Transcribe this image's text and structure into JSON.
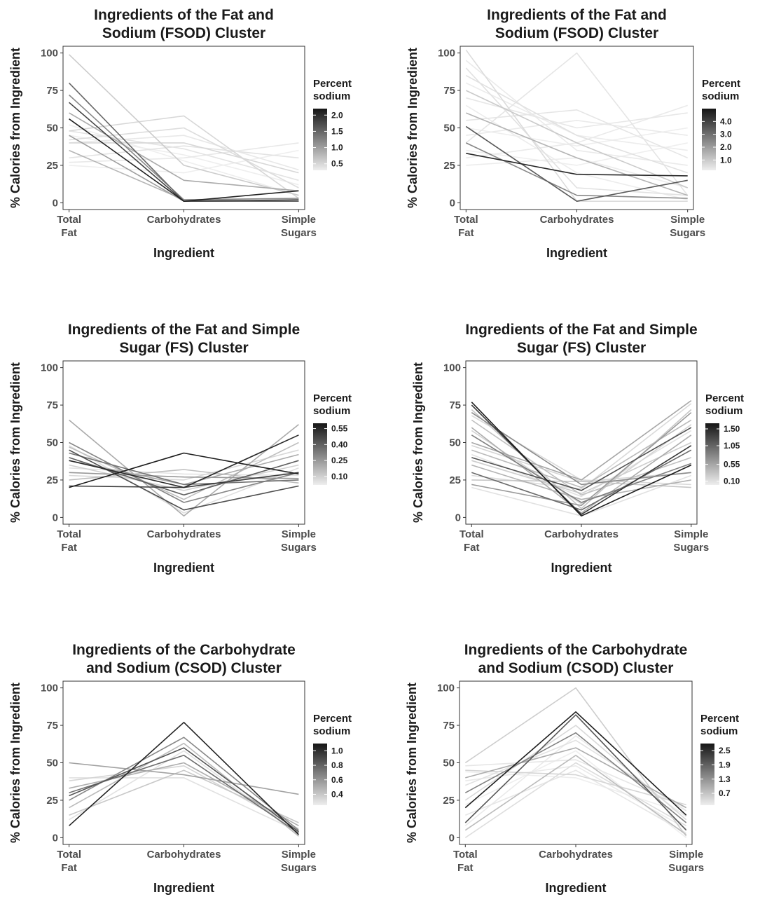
{
  "chart_data": [
    {
      "type": "line",
      "title": [
        "Ingredients of the Fat and",
        "Sodium (FSOD) Cluster"
      ],
      "xlabel": "Ingredient",
      "ylabel": "% Calories from Ingredient",
      "categories": [
        [
          "Total",
          "Fat"
        ],
        [
          "Carbohydrates"
        ],
        [
          "Simple",
          "Sugars"
        ]
      ],
      "ylim": [
        0,
        100
      ],
      "yticks": [
        0,
        25,
        50,
        75,
        100
      ],
      "legend": {
        "title": [
          "Percent",
          "sodium"
        ],
        "placement": "right",
        "range": [
          0.3,
          2.2
        ],
        "ticks": [
          2.0,
          1.5,
          1.0,
          0.5
        ],
        "tick_labels": [
          "2.0",
          "1.5",
          "1.0",
          "0.5"
        ]
      },
      "series": [
        {
          "sodium": 2.1,
          "values": [
            56,
            1,
            8
          ]
        },
        {
          "sodium": 1.8,
          "values": [
            67,
            1,
            2
          ]
        },
        {
          "sodium": 1.5,
          "values": [
            80,
            1,
            1
          ]
        },
        {
          "sodium": 1.2,
          "values": [
            72,
            2,
            3
          ]
        },
        {
          "sodium": 1.0,
          "values": [
            45,
            1,
            1
          ]
        },
        {
          "sodium": 0.9,
          "values": [
            60,
            15,
            8
          ]
        },
        {
          "sodium": 0.8,
          "values": [
            35,
            2,
            1
          ]
        },
        {
          "sodium": 0.6,
          "values": [
            99,
            25,
            5
          ]
        },
        {
          "sodium": 0.5,
          "values": [
            48,
            58,
            3
          ]
        },
        {
          "sodium": 0.5,
          "values": [
            40,
            40,
            20
          ]
        },
        {
          "sodium": 0.45,
          "values": [
            42,
            50,
            10
          ]
        },
        {
          "sodium": 0.4,
          "values": [
            30,
            38,
            30
          ]
        },
        {
          "sodium": 0.4,
          "values": [
            48,
            36,
            15
          ]
        },
        {
          "sodium": 0.35,
          "values": [
            27,
            30,
            40
          ]
        },
        {
          "sodium": 0.35,
          "values": [
            40,
            45,
            22
          ]
        },
        {
          "sodium": 0.3,
          "values": [
            52,
            28,
            5
          ]
        },
        {
          "sodium": 0.3,
          "values": [
            25,
            20,
            35
          ]
        },
        {
          "sodium": 0.3,
          "values": [
            45,
            32,
            12
          ]
        }
      ]
    },
    {
      "type": "line",
      "title": [
        "Ingredients of the Fat and",
        "Sodium (FSOD) Cluster"
      ],
      "xlabel": "Ingredient",
      "ylabel": "% Calories from Ingredient",
      "categories": [
        [
          "Total",
          "Fat"
        ],
        [
          "Carbohydrates"
        ],
        [
          "Simple",
          "Sugars"
        ]
      ],
      "ylim": [
        0,
        100
      ],
      "yticks": [
        0,
        25,
        50,
        75,
        100
      ],
      "legend": {
        "title": [
          "Percent",
          "sodium"
        ],
        "placement": "right",
        "range": [
          0.2,
          5.0
        ],
        "ticks": [
          4.0,
          3.0,
          2.0,
          1.0
        ],
        "tick_labels": [
          "4.0",
          "3.0",
          "2.0",
          "1.0"
        ]
      },
      "series": [
        {
          "sodium": 4.6,
          "values": [
            33,
            19,
            18
          ]
        },
        {
          "sodium": 3.5,
          "values": [
            51,
            1,
            15
          ]
        },
        {
          "sodium": 2.5,
          "values": [
            40,
            5,
            3
          ]
        },
        {
          "sodium": 1.5,
          "values": [
            60,
            30,
            5
          ]
        },
        {
          "sodium": 1.0,
          "values": [
            75,
            40,
            10
          ]
        },
        {
          "sodium": 0.6,
          "values": [
            102,
            1,
            1
          ]
        },
        {
          "sodium": 0.5,
          "values": [
            90,
            10,
            5
          ]
        },
        {
          "sodium": 0.5,
          "values": [
            85,
            45,
            20
          ]
        },
        {
          "sodium": 0.4,
          "values": [
            40,
            100,
            5
          ]
        },
        {
          "sodium": 0.4,
          "values": [
            55,
            62,
            30
          ]
        },
        {
          "sodium": 0.35,
          "values": [
            70,
            50,
            60
          ]
        },
        {
          "sodium": 0.3,
          "values": [
            30,
            40,
            65
          ]
        },
        {
          "sodium": 0.3,
          "values": [
            45,
            55,
            45
          ]
        },
        {
          "sodium": 0.3,
          "values": [
            95,
            35,
            25
          ]
        },
        {
          "sodium": 0.25,
          "values": [
            25,
            30,
            10
          ]
        },
        {
          "sodium": 0.25,
          "values": [
            65,
            20,
            2
          ]
        },
        {
          "sodium": 0.25,
          "values": [
            80,
            45,
            35
          ]
        },
        {
          "sodium": 0.2,
          "values": [
            50,
            38,
            50
          ]
        },
        {
          "sodium": 0.2,
          "values": [
            35,
            25,
            40
          ]
        }
      ]
    },
    {
      "type": "line",
      "title": [
        "Ingredients of the Fat and Simple",
        "Sugar (FS) Cluster"
      ],
      "xlabel": "Ingredient",
      "ylabel": "% Calories from Ingredient",
      "categories": [
        [
          "Total",
          "Fat"
        ],
        [
          "Carbohydrates"
        ],
        [
          "Simple",
          "Sugars"
        ]
      ],
      "ylim": [
        0,
        100
      ],
      "yticks": [
        0,
        25,
        50,
        75,
        100
      ],
      "legend": {
        "title": [
          "Percent",
          "sodium"
        ],
        "placement": "right",
        "range": [
          0.02,
          0.6
        ],
        "ticks": [
          0.55,
          0.4,
          0.25,
          0.1
        ],
        "tick_labels": [
          "0.55",
          "0.40",
          "0.25",
          "0.10"
        ]
      },
      "series": [
        {
          "sodium": 0.58,
          "values": [
            20,
            43,
            29
          ]
        },
        {
          "sodium": 0.55,
          "values": [
            38,
            20,
            55
          ]
        },
        {
          "sodium": 0.5,
          "values": [
            21,
            20,
            30
          ]
        },
        {
          "sodium": 0.45,
          "values": [
            45,
            5,
            21
          ]
        },
        {
          "sodium": 0.4,
          "values": [
            40,
            15,
            38
          ]
        },
        {
          "sodium": 0.35,
          "values": [
            43,
            22,
            25
          ]
        },
        {
          "sodium": 0.3,
          "values": [
            50,
            10,
            30
          ]
        },
        {
          "sodium": 0.25,
          "values": [
            30,
            27,
            26
          ]
        },
        {
          "sodium": 0.2,
          "values": [
            65,
            1,
            62
          ]
        },
        {
          "sodium": 0.2,
          "values": [
            38,
            22,
            42
          ]
        },
        {
          "sodium": 0.15,
          "values": [
            25,
            32,
            23
          ]
        },
        {
          "sodium": 0.15,
          "values": [
            47,
            12,
            50
          ]
        },
        {
          "sodium": 0.1,
          "values": [
            35,
            18,
            35
          ]
        },
        {
          "sodium": 0.08,
          "values": [
            28,
            25,
            45
          ]
        },
        {
          "sodium": 0.06,
          "values": [
            48,
            3,
            33
          ]
        },
        {
          "sodium": 0.05,
          "values": [
            33,
            29,
            28
          ]
        }
      ]
    },
    {
      "type": "line",
      "title": [
        "Ingredients of the Fat and Simple",
        "Sugar (FS) Cluster"
      ],
      "xlabel": "Ingredient",
      "ylabel": "% Calories from Ingredient",
      "categories": [
        [
          "Total",
          "Fat"
        ],
        [
          "Carbohydrates"
        ],
        [
          "Simple",
          "Sugars"
        ]
      ],
      "ylim": [
        0,
        100
      ],
      "yticks": [
        0,
        25,
        50,
        75,
        100
      ],
      "legend": {
        "title": [
          "Percent",
          "sodium"
        ],
        "placement": "right",
        "range": [
          0.0,
          1.65
        ],
        "ticks": [
          1.5,
          1.05,
          0.55,
          0.1
        ],
        "tick_labels": [
          "1.50",
          "1.05",
          "0.55",
          "0.10"
        ]
      },
      "series": [
        {
          "sodium": 1.6,
          "values": [
            77,
            1,
            35
          ]
        },
        {
          "sodium": 1.4,
          "values": [
            75,
            2,
            48
          ]
        },
        {
          "sodium": 1.2,
          "values": [
            40,
            18,
            60
          ]
        },
        {
          "sodium": 1.0,
          "values": [
            30,
            5,
            45
          ]
        },
        {
          "sodium": 0.85,
          "values": [
            55,
            10,
            36
          ]
        },
        {
          "sodium": 0.75,
          "values": [
            70,
            22,
            30
          ]
        },
        {
          "sodium": 0.65,
          "values": [
            22,
            8,
            70
          ]
        },
        {
          "sodium": 0.55,
          "values": [
            50,
            25,
            78
          ]
        },
        {
          "sodium": 0.5,
          "values": [
            60,
            3,
            55
          ]
        },
        {
          "sodium": 0.45,
          "values": [
            35,
            12,
            25
          ]
        },
        {
          "sodium": 0.4,
          "values": [
            45,
            20,
            65
          ]
        },
        {
          "sodium": 0.35,
          "values": [
            65,
            15,
            40
          ]
        },
        {
          "sodium": 0.3,
          "values": [
            25,
            24,
            20
          ]
        },
        {
          "sodium": 0.3,
          "values": [
            72,
            6,
            72
          ]
        },
        {
          "sodium": 0.25,
          "values": [
            38,
            16,
            50
          ]
        },
        {
          "sodium": 0.2,
          "values": [
            48,
            24,
            30
          ]
        },
        {
          "sodium": 0.2,
          "values": [
            58,
            9,
            62
          ]
        },
        {
          "sodium": 0.15,
          "values": [
            28,
            19,
            76
          ]
        },
        {
          "sodium": 0.15,
          "values": [
            68,
            25,
            22
          ]
        },
        {
          "sodium": 0.1,
          "values": [
            20,
            1,
            28
          ]
        },
        {
          "sodium": 0.1,
          "values": [
            42,
            14,
            58
          ]
        }
      ]
    },
    {
      "type": "line",
      "title": [
        "Ingredients of the Carbohydrate",
        "and Sodium (CSOD) Cluster"
      ],
      "xlabel": "Ingredient",
      "ylabel": "% Calories from Ingredient",
      "categories": [
        [
          "Total",
          "Fat"
        ],
        [
          "Carbohydrates"
        ],
        [
          "Simple",
          "Sugars"
        ]
      ],
      "ylim": [
        0,
        100
      ],
      "yticks": [
        0,
        25,
        50,
        75,
        100
      ],
      "legend": {
        "title": [
          "Percent",
          "sodium"
        ],
        "placement": "right",
        "range": [
          0.25,
          1.1
        ],
        "ticks": [
          1.0,
          0.8,
          0.6,
          0.4
        ],
        "tick_labels": [
          "1.0",
          "0.8",
          "0.6",
          "0.4"
        ]
      },
      "series": [
        {
          "sodium": 1.05,
          "values": [
            8,
            77,
            2
          ]
        },
        {
          "sodium": 0.85,
          "values": [
            28,
            60,
            4
          ]
        },
        {
          "sodium": 0.75,
          "values": [
            30,
            55,
            3
          ]
        },
        {
          "sodium": 0.65,
          "values": [
            25,
            67,
            5
          ]
        },
        {
          "sodium": 0.55,
          "values": [
            50,
            42,
            29
          ]
        },
        {
          "sodium": 0.5,
          "values": [
            33,
            50,
            8
          ]
        },
        {
          "sodium": 0.45,
          "values": [
            20,
            63,
            1
          ]
        },
        {
          "sodium": 0.4,
          "values": [
            15,
            45,
            10
          ]
        },
        {
          "sodium": 0.35,
          "values": [
            38,
            48,
            6
          ]
        },
        {
          "sodium": 0.3,
          "values": [
            12,
            58,
            2
          ]
        },
        {
          "sodium": 0.3,
          "values": [
            40,
            40,
            4
          ]
        }
      ]
    },
    {
      "type": "line",
      "title": [
        "Ingredients of the Carbohydrate",
        "and Sodium (CSOD) Cluster"
      ],
      "xlabel": "Ingredient",
      "ylabel": "% Calories from Ingredient",
      "categories": [
        [
          "Total",
          "Fat"
        ],
        [
          "Carbohydrates"
        ],
        [
          "Simple",
          "Sugars"
        ]
      ],
      "ylim": [
        0,
        100
      ],
      "yticks": [
        0,
        25,
        50,
        75,
        100
      ],
      "legend": {
        "title": [
          "Percent",
          "sodium"
        ],
        "placement": "right",
        "range": [
          0.2,
          2.8
        ],
        "ticks": [
          2.5,
          1.9,
          1.3,
          0.7
        ],
        "tick_labels": [
          "2.5",
          "1.9",
          "1.3",
          "0.7"
        ]
      },
      "series": [
        {
          "sodium": 2.7,
          "values": [
            20,
            84,
            15
          ]
        },
        {
          "sodium": 2.0,
          "values": [
            10,
            82,
            5
          ]
        },
        {
          "sodium": 1.5,
          "values": [
            30,
            70,
            10
          ]
        },
        {
          "sodium": 1.0,
          "values": [
            40,
            60,
            20
          ]
        },
        {
          "sodium": 0.8,
          "values": [
            5,
            55,
            2
          ]
        },
        {
          "sodium": 0.6,
          "values": [
            50,
            100,
            1
          ]
        },
        {
          "sodium": 0.5,
          "values": [
            45,
            42,
            22
          ]
        },
        {
          "sodium": 0.45,
          "values": [
            25,
            75,
            12
          ]
        },
        {
          "sodium": 0.4,
          "values": [
            0,
            50,
            8
          ]
        },
        {
          "sodium": 0.35,
          "values": [
            35,
            65,
            18
          ]
        },
        {
          "sodium": 0.3,
          "values": [
            15,
            45,
            3
          ]
        },
        {
          "sodium": 0.3,
          "values": [
            48,
            52,
            20
          ]
        },
        {
          "sodium": 0.25,
          "values": [
            8,
            68,
            14
          ]
        },
        {
          "sodium": 0.25,
          "values": [
            38,
            48,
            6
          ]
        },
        {
          "sodium": 0.2,
          "values": [
            22,
            58,
            0
          ]
        },
        {
          "sodium": 0.2,
          "values": [
            44,
            40,
            16
          ]
        }
      ]
    }
  ]
}
